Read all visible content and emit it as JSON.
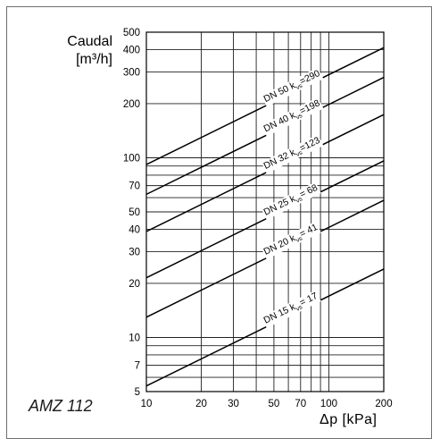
{
  "caption": "AMZ 112",
  "chart_data": {
    "type": "line",
    "ylabel_line1": "Caudal",
    "ylabel_line2": "[m³/h]",
    "xlabel": "Δp  [kPa]",
    "x_scale": "log",
    "y_scale": "log",
    "xlim": [
      10,
      200
    ],
    "ylim": [
      5,
      500
    ],
    "x_ticks": [
      10,
      20,
      30,
      50,
      70,
      100,
      200
    ],
    "y_ticks": [
      5,
      7,
      10,
      20,
      30,
      40,
      50,
      70,
      100,
      200,
      300,
      400,
      500
    ],
    "grid": true,
    "series": [
      {
        "name": "DN 50 kvs=290",
        "dn": "DN 50 k",
        "sub": "vs",
        "val": "=290",
        "kvs": 290
      },
      {
        "name": "DN 40 kvs=198",
        "dn": "DN 40 k",
        "sub": "vs",
        "val": "=198",
        "kvs": 198
      },
      {
        "name": "DN 32 kvs=123",
        "dn": "DN 32 k",
        "sub": "vs",
        "val": "=123",
        "kvs": 123
      },
      {
        "name": "DN 25 kvs=68",
        "dn": "DN 25 k",
        "sub": "vs",
        "val": "= 68",
        "kvs": 68
      },
      {
        "name": "DN 20 kvs=41",
        "dn": "DN 20 k",
        "sub": "vs",
        "val": "= 41",
        "kvs": 41
      },
      {
        "name": "DN 15 kvs=17",
        "dn": "DN 15 k",
        "sub": "vs",
        "val": "= 17",
        "kvs": 17
      }
    ]
  }
}
